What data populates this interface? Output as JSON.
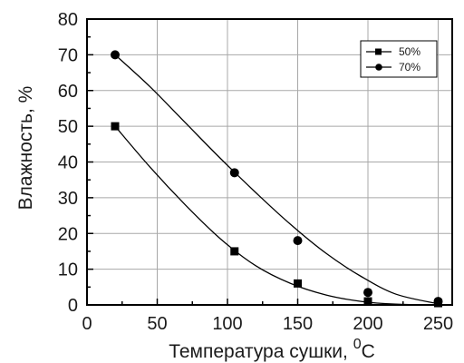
{
  "chart_data": {
    "type": "scatter",
    "title": "",
    "xlabel": "Температура сушки, ",
    "xlabel_sup": "0",
    "xlabel_unit": "C",
    "ylabel": "Влажность, %",
    "xlim": [
      0,
      260
    ],
    "ylim": [
      0,
      80
    ],
    "xticks": [
      0,
      50,
      100,
      150,
      200,
      250
    ],
    "yticks": [
      0,
      10,
      20,
      30,
      40,
      50,
      60,
      70,
      80
    ],
    "grid": true,
    "legend_position": "top-right",
    "series": [
      {
        "name": "50%",
        "marker": "square",
        "x": [
          20,
          105,
          150,
          200,
          250
        ],
        "y": [
          50,
          15,
          6,
          1,
          0.5
        ],
        "fit": [
          50,
          38.5,
          28,
          18.5,
          11,
          6,
          2.8,
          1,
          0.2,
          0
        ]
      },
      {
        "name": "70%",
        "marker": "circle",
        "x": [
          20,
          105,
          150,
          200,
          250
        ],
        "y": [
          70,
          37,
          18,
          3.5,
          1
        ],
        "fit": [
          70,
          61,
          51,
          41,
          31.5,
          22.5,
          14.5,
          8,
          3,
          0.3
        ]
      }
    ],
    "fit_x": [
      20,
      45,
      70,
      95,
      120,
      145,
      170,
      195,
      220,
      250
    ]
  }
}
